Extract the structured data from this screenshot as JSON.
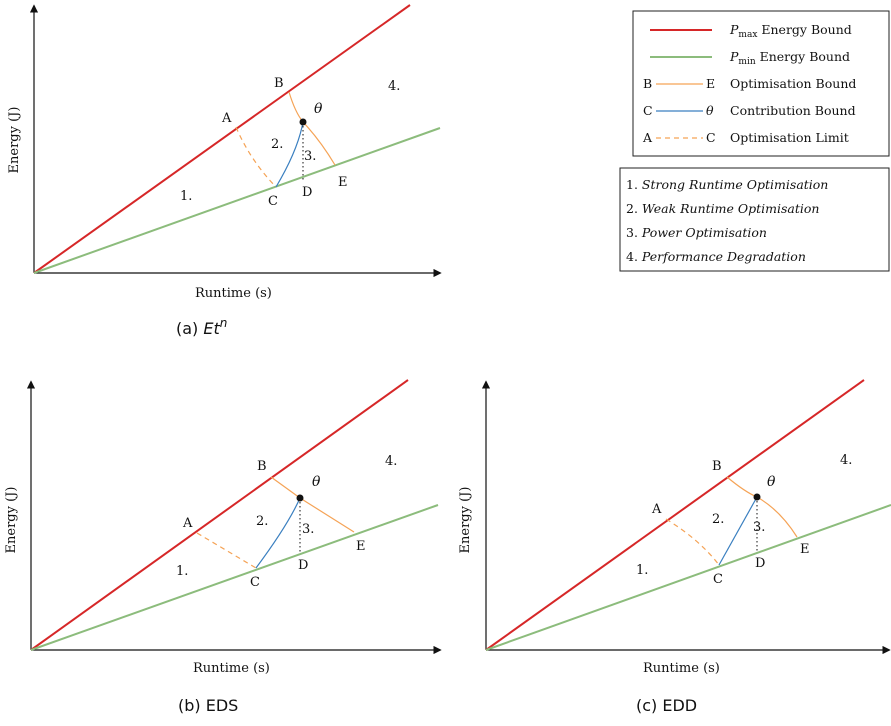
{
  "panels": [
    {
      "id": "a",
      "caption_prefix": "(a) ",
      "caption_main": "Et",
      "caption_sup": "n",
      "caption_plain": "",
      "x_label": "Runtime (s)",
      "y_label": "Energy (J)",
      "points": {
        "A": "A",
        "B": "B",
        "C": "C",
        "D": "D",
        "E": "E",
        "theta": "θ"
      },
      "regions": [
        "1.",
        "2.",
        "3.",
        "4."
      ]
    },
    {
      "id": "b",
      "caption_prefix": "",
      "caption_main": "",
      "caption_sup": "",
      "caption_plain": "(b) EDS",
      "x_label": "Runtime (s)",
      "y_label": "Energy (J)",
      "points": {
        "A": "A",
        "B": "B",
        "C": "C",
        "D": "D",
        "E": "E",
        "theta": "θ"
      },
      "regions": [
        "1.",
        "2.",
        "3.",
        "4."
      ]
    },
    {
      "id": "c",
      "caption_prefix": "",
      "caption_main": "",
      "caption_sup": "",
      "caption_plain": "(c) EDD",
      "x_label": "Runtime (s)",
      "y_label": "Energy (J)",
      "points": {
        "A": "A",
        "B": "B",
        "C": "C",
        "D": "D",
        "E": "E",
        "theta": "θ"
      },
      "regions": [
        "1.",
        "2.",
        "3.",
        "4."
      ]
    }
  ],
  "legend": {
    "lines": [
      {
        "sym_a": "",
        "sym_b": "",
        "var": "P",
        "sub": "max",
        "text": " Energy Bound",
        "color": "#d62728",
        "style": "solid",
        "thick": true
      },
      {
        "sym_a": "",
        "sym_b": "",
        "var": "P",
        "sub": "min",
        "text": " Energy Bound",
        "color": "#8cbc7c",
        "style": "solid",
        "thick": true
      },
      {
        "sym_a": "B",
        "sym_b": "E",
        "var": "",
        "sub": "",
        "text": "Optimisation Bound",
        "color": "#f5a356",
        "style": "solid",
        "thick": false
      },
      {
        "sym_a": "C",
        "sym_b": "θ",
        "var": "",
        "sub": "",
        "text": "Contribution Bound",
        "color": "#3a7fc0",
        "style": "solid",
        "thick": false
      },
      {
        "sym_a": "A",
        "sym_b": "C",
        "var": "",
        "sub": "",
        "text": "Optimisation Limit",
        "color": "#f5a356",
        "style": "dashed",
        "thick": false
      }
    ],
    "regions": [
      {
        "num": "1. ",
        "text": "Strong Runtime Optimisation"
      },
      {
        "num": "2. ",
        "text": "Weak Runtime Optimisation"
      },
      {
        "num": "3. ",
        "text": "Power Optimisation"
      },
      {
        "num": "4. ",
        "text": "Performance Degradation"
      }
    ]
  },
  "colors": {
    "pmax": "#d62728",
    "pmin": "#8cbc7c",
    "orange": "#f5a356",
    "blue": "#3a7fc0",
    "axis": "#111111"
  }
}
